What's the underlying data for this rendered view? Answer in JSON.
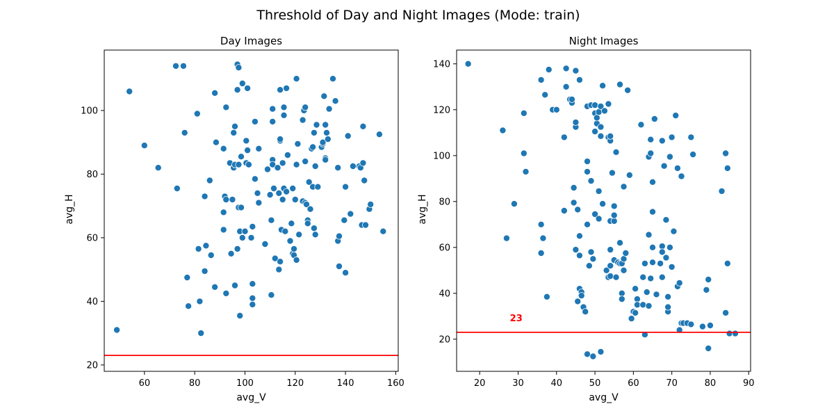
{
  "suptitle": "Threshold of Day and Night Images (Mode: train)",
  "chart_data": [
    {
      "type": "scatter",
      "title": "Day Images",
      "xlabel": "avg_V",
      "ylabel": "avg_H",
      "xlim": [
        44,
        161
      ],
      "ylim": [
        18,
        119
      ],
      "xticks": [
        60,
        80,
        100,
        120,
        140,
        160
      ],
      "yticks": [
        20,
        40,
        60,
        80,
        100
      ],
      "point_color": "#1f77b4",
      "threshold": {
        "value": 23,
        "color": "#ff0000",
        "label": ""
      },
      "points": [
        [
          49,
          31
        ],
        [
          54,
          106
        ],
        [
          60,
          89
        ],
        [
          65.5,
          82
        ],
        [
          72.5,
          114
        ],
        [
          73,
          75.5
        ],
        [
          75.5,
          114
        ],
        [
          76,
          93
        ],
        [
          77,
          47.5
        ],
        [
          77.5,
          38.5
        ],
        [
          81,
          99
        ],
        [
          81.5,
          56.5
        ],
        [
          82,
          40
        ],
        [
          82.5,
          30
        ],
        [
          84,
          73
        ],
        [
          84.5,
          57.5
        ],
        [
          84,
          49.5
        ],
        [
          86,
          78
        ],
        [
          86.5,
          54.5
        ],
        [
          88,
          105.5
        ],
        [
          88,
          44.5
        ],
        [
          88.5,
          90
        ],
        [
          91.5,
          88
        ],
        [
          91.5,
          68
        ],
        [
          91.5,
          62.5
        ],
        [
          92,
          73
        ],
        [
          92.5,
          72
        ],
        [
          92.5,
          101
        ],
        [
          92.5,
          42.5
        ],
        [
          94,
          83.5
        ],
        [
          94.5,
          55
        ],
        [
          95,
          72
        ],
        [
          95.5,
          93
        ],
        [
          95.5,
          82
        ],
        [
          96,
          83
        ],
        [
          96,
          45
        ],
        [
          96,
          95
        ],
        [
          97,
          114.5
        ],
        [
          97.5,
          113.5
        ],
        [
          97,
          106.5
        ],
        [
          97,
          56.5
        ],
        [
          97.5,
          83
        ],
        [
          97.5,
          69.5
        ],
        [
          98,
          62
        ],
        [
          98,
          35.5
        ],
        [
          98.5,
          85.5
        ],
        [
          98.5,
          69.5
        ],
        [
          99,
          108.5
        ],
        [
          99,
          60
        ],
        [
          100,
          62
        ],
        [
          100.5,
          90.5
        ],
        [
          100.5,
          83.5
        ],
        [
          101,
          107
        ],
        [
          101,
          87.5
        ],
        [
          101.5,
          83
        ],
        [
          102.5,
          60
        ],
        [
          103,
          63.5
        ],
        [
          103,
          45.5
        ],
        [
          103,
          41
        ],
        [
          103,
          39
        ],
        [
          104,
          78.5
        ],
        [
          104,
          96.5
        ],
        [
          105,
          74
        ],
        [
          105.5,
          71
        ],
        [
          105.5,
          88
        ],
        [
          108,
          58
        ],
        [
          109,
          81.5
        ],
        [
          110,
          73.5
        ],
        [
          110.5,
          65.5
        ],
        [
          110.5,
          42
        ],
        [
          111,
          84.5
        ],
        [
          111,
          83
        ],
        [
          111,
          100.5
        ],
        [
          111,
          96.5
        ],
        [
          111.5,
          75.5
        ],
        [
          112,
          53.5
        ],
        [
          113,
          82
        ],
        [
          113.5,
          50
        ],
        [
          113.5,
          74
        ],
        [
          114,
          90.5
        ],
        [
          114,
          91
        ],
        [
          114,
          106.5
        ],
        [
          114,
          52.5
        ],
        [
          114.5,
          62.5
        ],
        [
          115,
          83.5
        ],
        [
          115,
          72
        ],
        [
          115.5,
          101
        ],
        [
          115.5,
          98.5
        ],
        [
          115.5,
          75.5
        ],
        [
          116,
          62
        ],
        [
          116.5,
          107
        ],
        [
          116.5,
          74.5
        ],
        [
          117,
          86
        ],
        [
          118,
          59
        ],
        [
          118.5,
          64.5
        ],
        [
          119,
          75.5
        ],
        [
          119,
          55
        ],
        [
          119.5,
          56.5
        ],
        [
          119.5,
          54.5
        ],
        [
          120,
          72
        ],
        [
          120.5,
          53
        ],
        [
          120.5,
          110
        ],
        [
          120.5,
          83
        ],
        [
          121,
          89.5
        ],
        [
          121.5,
          61
        ],
        [
          123,
          71.5
        ],
        [
          123,
          97
        ],
        [
          123.5,
          100
        ],
        [
          124,
          71
        ],
        [
          124,
          101
        ],
        [
          124,
          84
        ],
        [
          124.5,
          70.5
        ],
        [
          125,
          65.5
        ],
        [
          125,
          64.5
        ],
        [
          125.5,
          77.5
        ],
        [
          126,
          69
        ],
        [
          126.5,
          88
        ],
        [
          127,
          76
        ],
        [
          127,
          88.5
        ],
        [
          127.5,
          93
        ],
        [
          127.5,
          63
        ],
        [
          128,
          82.5
        ],
        [
          128,
          61
        ],
        [
          128.5,
          95.5
        ],
        [
          129,
          76
        ],
        [
          130.5,
          88.5
        ],
        [
          131,
          89.5
        ],
        [
          131,
          90
        ],
        [
          131.5,
          104.5
        ],
        [
          132,
          85
        ],
        [
          132,
          84.5
        ],
        [
          132,
          95.5
        ],
        [
          132.5,
          93
        ],
        [
          133,
          91
        ],
        [
          133.5,
          100.5
        ],
        [
          135,
          110
        ],
        [
          136,
          103
        ],
        [
          137,
          82
        ],
        [
          137,
          59
        ],
        [
          137.5,
          60.5
        ],
        [
          137.5,
          51
        ],
        [
          139.5,
          65.5
        ],
        [
          140,
          76
        ],
        [
          140,
          49
        ],
        [
          141,
          92
        ],
        [
          142,
          67.5
        ],
        [
          143,
          82.5
        ],
        [
          145.5,
          82.5
        ],
        [
          146,
          82
        ],
        [
          146.5,
          64
        ],
        [
          147,
          83.5
        ],
        [
          147,
          95
        ],
        [
          147.5,
          78
        ],
        [
          148,
          64
        ],
        [
          149.5,
          69
        ],
        [
          150,
          70.5
        ],
        [
          153.5,
          92.5
        ],
        [
          155,
          62
        ]
      ]
    },
    {
      "type": "scatter",
      "title": "Night Images",
      "xlabel": "avg_V",
      "ylabel": "avg_H",
      "xlim": [
        14,
        90.5
      ],
      "ylim": [
        6,
        146
      ],
      "xticks": [
        20,
        30,
        40,
        50,
        60,
        70,
        80,
        90
      ],
      "yticks": [
        20,
        40,
        60,
        80,
        100,
        120,
        140
      ],
      "point_color": "#1f77b4",
      "threshold": {
        "value": 23,
        "color": "#ff0000",
        "label": "23"
      },
      "points": [
        [
          17,
          140
        ],
        [
          26,
          111
        ],
        [
          27,
          64
        ],
        [
          29,
          79
        ],
        [
          31.5,
          118.5
        ],
        [
          31.5,
          101
        ],
        [
          32,
          93
        ],
        [
          36,
          133
        ],
        [
          36,
          57.5
        ],
        [
          36,
          70
        ],
        [
          36.5,
          64
        ],
        [
          37,
          126.5
        ],
        [
          37.5,
          38.5
        ],
        [
          38,
          137.5
        ],
        [
          39,
          120
        ],
        [
          40,
          120
        ],
        [
          42,
          108
        ],
        [
          42,
          76
        ],
        [
          42.5,
          130
        ],
        [
          42.5,
          138
        ],
        [
          43.5,
          124.5
        ],
        [
          44,
          123
        ],
        [
          44,
          124.5
        ],
        [
          44.5,
          86
        ],
        [
          44.5,
          79.5
        ],
        [
          45,
          137
        ],
        [
          45,
          112.5
        ],
        [
          45,
          114.5
        ],
        [
          45,
          59
        ],
        [
          45.5,
          76.5
        ],
        [
          45.5,
          36.5
        ],
        [
          46,
          56.5
        ],
        [
          46,
          133
        ],
        [
          46,
          65
        ],
        [
          46,
          42
        ],
        [
          46.5,
          40.5
        ],
        [
          46.5,
          39
        ],
        [
          47,
          34
        ],
        [
          47.5,
          32
        ],
        [
          48,
          97.5
        ],
        [
          48,
          70
        ],
        [
          48,
          121.5
        ],
        [
          48,
          93
        ],
        [
          48,
          13.5
        ],
        [
          48.5,
          52
        ],
        [
          49,
          89
        ],
        [
          49,
          122
        ],
        [
          49,
          58
        ],
        [
          49.5,
          55
        ],
        [
          49.5,
          12.5
        ],
        [
          50,
          118.5
        ],
        [
          50,
          110.5
        ],
        [
          50,
          74.5
        ],
        [
          50,
          122
        ],
        [
          50.5,
          114
        ],
        [
          50.5,
          116.5
        ],
        [
          51,
          84.5
        ],
        [
          51,
          119
        ],
        [
          51.5,
          121.5
        ],
        [
          51,
          72.5
        ],
        [
          51.5,
          112.5
        ],
        [
          51.5,
          108.5
        ],
        [
          51.5,
          14.5
        ],
        [
          52,
          79
        ],
        [
          52,
          130.5
        ],
        [
          52.5,
          119.5
        ],
        [
          53,
          50
        ],
        [
          53.5,
          122.5
        ],
        [
          53.5,
          47
        ],
        [
          53.5,
          108
        ],
        [
          54,
          106.5
        ],
        [
          54,
          108.5
        ],
        [
          54,
          71.5
        ],
        [
          54,
          59
        ],
        [
          54,
          47.5
        ],
        [
          54.5,
          92.5
        ],
        [
          54,
          52
        ],
        [
          55,
          71.5
        ],
        [
          55,
          78
        ],
        [
          55,
          74
        ],
        [
          55,
          54.5
        ],
        [
          55.5,
          101.5
        ],
        [
          55.5,
          47
        ],
        [
          56,
          53.5
        ],
        [
          56.5,
          53
        ],
        [
          56.5,
          131
        ],
        [
          56.5,
          62
        ],
        [
          57,
          40
        ],
        [
          57,
          37.5
        ],
        [
          57,
          53
        ],
        [
          57.5,
          86.5
        ],
        [
          57.5,
          55
        ],
        [
          57.5,
          50
        ],
        [
          58,
          57.5
        ],
        [
          58.5,
          128.5
        ],
        [
          59,
          91.5
        ],
        [
          59.5,
          29
        ],
        [
          60,
          32
        ],
        [
          60.5,
          31.5
        ],
        [
          60.5,
          42
        ],
        [
          61,
          37.5
        ],
        [
          61,
          35
        ],
        [
          62,
          113.5
        ],
        [
          62.5,
          47
        ],
        [
          62.5,
          35
        ],
        [
          63,
          53
        ],
        [
          63,
          22
        ],
        [
          63.5,
          40.5
        ],
        [
          64,
          34.5
        ],
        [
          64,
          99.5
        ],
        [
          64,
          65.5
        ],
        [
          64.5,
          107
        ],
        [
          64.5,
          46.5
        ],
        [
          64.5,
          101
        ],
        [
          65,
          75.5
        ],
        [
          65,
          60
        ],
        [
          65,
          53.5
        ],
        [
          65,
          88.5
        ],
        [
          65.5,
          116
        ],
        [
          66,
          39.5
        ],
        [
          67,
          53
        ],
        [
          67.5,
          106.5
        ],
        [
          67.5,
          47
        ],
        [
          67.5,
          60.5
        ],
        [
          67.5,
          58
        ],
        [
          68,
          95.5
        ],
        [
          68.5,
          72
        ],
        [
          68.5,
          55.5
        ],
        [
          69,
          38.5
        ],
        [
          69,
          32
        ],
        [
          69,
          34
        ],
        [
          69.5,
          99.5
        ],
        [
          69.5,
          60
        ],
        [
          70,
          108
        ],
        [
          70,
          51.5
        ],
        [
          70.5,
          67
        ],
        [
          71,
          117.5
        ],
        [
          71.5,
          94.5
        ],
        [
          71.5,
          43
        ],
        [
          72,
          44.5
        ],
        [
          72,
          24
        ],
        [
          72.5,
          27
        ],
        [
          72.5,
          91
        ],
        [
          73,
          27
        ],
        [
          74,
          27
        ],
        [
          75,
          108
        ],
        [
          75,
          26.5
        ],
        [
          75.5,
          100.5
        ],
        [
          78,
          25.5
        ],
        [
          79,
          41.5
        ],
        [
          79.5,
          46
        ],
        [
          79.5,
          16
        ],
        [
          80,
          26
        ],
        [
          83,
          84.5
        ],
        [
          84,
          101
        ],
        [
          84,
          31.5
        ],
        [
          84.5,
          94.5
        ],
        [
          84.5,
          53
        ],
        [
          85,
          22.5
        ],
        [
          86.5,
          22.5
        ]
      ]
    }
  ]
}
